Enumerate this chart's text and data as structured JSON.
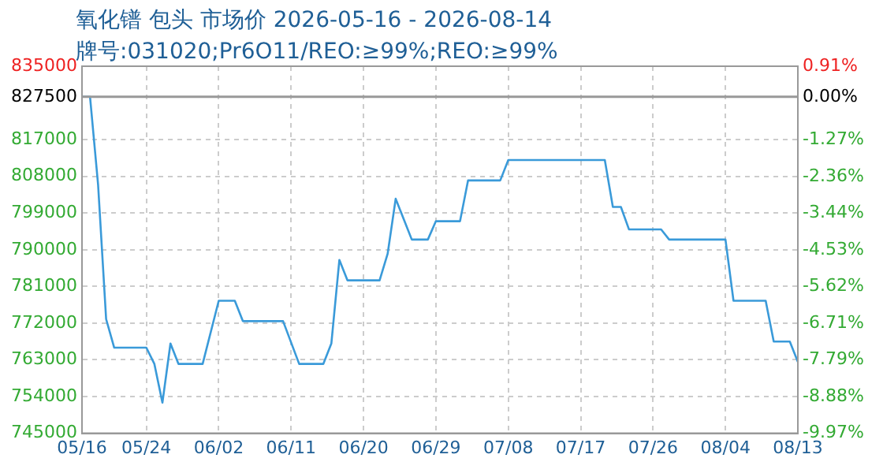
{
  "chart_data": {
    "type": "line",
    "title": "氧化镨 包头 市场价 2026-05-16 - 2026-08-14",
    "subtitle": "牌号:031020;Pr6O11/REO:≥99%;REO:≥99%",
    "x": [
      "2026-05-16",
      "2026-05-17",
      "2026-05-18",
      "2026-05-19",
      "2026-05-20",
      "2026-05-24",
      "2026-05-25",
      "2026-05-26",
      "2026-05-27",
      "2026-05-28",
      "2026-05-31",
      "2026-06-02",
      "2026-06-04",
      "2026-06-05",
      "2026-06-10",
      "2026-06-12",
      "2026-06-15",
      "2026-06-16",
      "2026-06-17",
      "2026-06-18",
      "2026-06-22",
      "2026-06-23",
      "2026-06-24",
      "2026-06-26",
      "2026-06-28",
      "2026-06-29",
      "2026-07-02",
      "2026-07-03",
      "2026-07-07",
      "2026-07-08",
      "2026-07-20",
      "2026-07-21",
      "2026-07-22",
      "2026-07-23",
      "2026-07-27",
      "2026-07-28",
      "2026-08-04",
      "2026-08-05",
      "2026-08-09",
      "2026-08-10",
      "2026-08-12",
      "2026-08-13"
    ],
    "series": [
      {
        "color": "#3a9ad9",
        "values": [
          827500,
          827500,
          806000,
          773000,
          766000,
          766000,
          762000,
          752500,
          767000,
          762000,
          762000,
          777500,
          777500,
          772500,
          772500,
          762000,
          762000,
          767000,
          787500,
          782500,
          782500,
          789000,
          802500,
          792500,
          792500,
          797000,
          797000,
          807000,
          807000,
          812000,
          812000,
          800500,
          800500,
          795000,
          795000,
          792500,
          792500,
          777500,
          777500,
          767500,
          767500,
          762500
        ]
      }
    ],
    "xlim": [
      "2026-05-16",
      "2026-08-13"
    ],
    "xticks": [
      {
        "value": "2026-05-16",
        "label": "05/16"
      },
      {
        "value": "2026-05-24",
        "label": "05/24"
      },
      {
        "value": "2026-06-02",
        "label": "06/02"
      },
      {
        "value": "2026-06-11",
        "label": "06/11"
      },
      {
        "value": "2026-06-20",
        "label": "06/20"
      },
      {
        "value": "2026-06-29",
        "label": "06/29"
      },
      {
        "value": "2026-07-08",
        "label": "07/08"
      },
      {
        "value": "2026-07-17",
        "label": "07/17"
      },
      {
        "value": "2026-07-26",
        "label": "07/26"
      },
      {
        "value": "2026-08-04",
        "label": "08/04"
      },
      {
        "value": "2026-08-13",
        "label": "08/13"
      }
    ],
    "ylim": [
      745000,
      835000
    ],
    "yticks": [
      745000,
      754000,
      763000,
      772000,
      781000,
      790000,
      799000,
      808000,
      817000,
      827500,
      835000
    ],
    "y2lim": [
      -9.97,
      0.91
    ],
    "y2ticks": [
      {
        "value": -9.97,
        "label": "-9.97%"
      },
      {
        "value": -8.88,
        "label": "-8.88%"
      },
      {
        "value": -7.79,
        "label": "-7.79%"
      },
      {
        "value": -6.71,
        "label": "-6.71%"
      },
      {
        "value": -5.62,
        "label": "-5.62%"
      },
      {
        "value": -4.53,
        "label": "-4.53%"
      },
      {
        "value": -3.44,
        "label": "-3.44%"
      },
      {
        "value": -2.36,
        "label": "-2.36%"
      },
      {
        "value": -1.27,
        "label": "-1.27%"
      },
      {
        "value": 0,
        "label": "0.00%"
      },
      {
        "value": 0.91,
        "label": "0.91%"
      }
    ],
    "ref_lines": [
      {
        "axis": "y",
        "value": 827500,
        "color": "#999999"
      }
    ],
    "grid": true,
    "marker": "none",
    "line_style": "solid"
  }
}
